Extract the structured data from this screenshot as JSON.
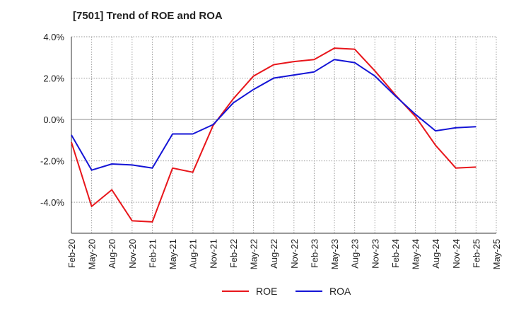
{
  "chart_data": {
    "type": "line",
    "title": "[7501]  Trend of ROE and ROA",
    "xlabel": "",
    "ylabel": "",
    "ylim": [
      -5.5,
      4.0
    ],
    "yticks": [
      4.0,
      2.0,
      0.0,
      -2.0,
      -4.0
    ],
    "ytick_labels": [
      "4.0%",
      "2.0%",
      "0.0%",
      "-2.0%",
      "-4.0%"
    ],
    "categories": [
      "Feb-20",
      "May-20",
      "Aug-20",
      "Nov-20",
      "Feb-21",
      "May-21",
      "Aug-21",
      "Nov-21",
      "Feb-22",
      "May-22",
      "Aug-22",
      "Nov-22",
      "Feb-23",
      "May-23",
      "Aug-23",
      "Nov-23",
      "Feb-24",
      "May-24",
      "Aug-24",
      "Nov-24",
      "Feb-25",
      "May-25"
    ],
    "grid": true,
    "legend_position": "bottom",
    "series": [
      {
        "name": "ROE",
        "color": "#e8161b",
        "values": [
          -1.1,
          -4.2,
          -3.4,
          -4.9,
          -4.95,
          -2.35,
          -2.55,
          -0.3,
          1.0,
          2.1,
          2.65,
          2.8,
          2.9,
          3.45,
          3.4,
          2.35,
          1.2,
          0.15,
          -1.25,
          -2.35,
          -2.3,
          null
        ]
      },
      {
        "name": "ROA",
        "color": "#1414d6",
        "values": [
          -0.75,
          -2.45,
          -2.15,
          -2.2,
          -2.35,
          -0.7,
          -0.7,
          -0.25,
          0.8,
          1.45,
          2.0,
          2.15,
          2.3,
          2.9,
          2.75,
          2.1,
          1.15,
          0.25,
          -0.55,
          -0.4,
          -0.35,
          null
        ]
      }
    ]
  }
}
